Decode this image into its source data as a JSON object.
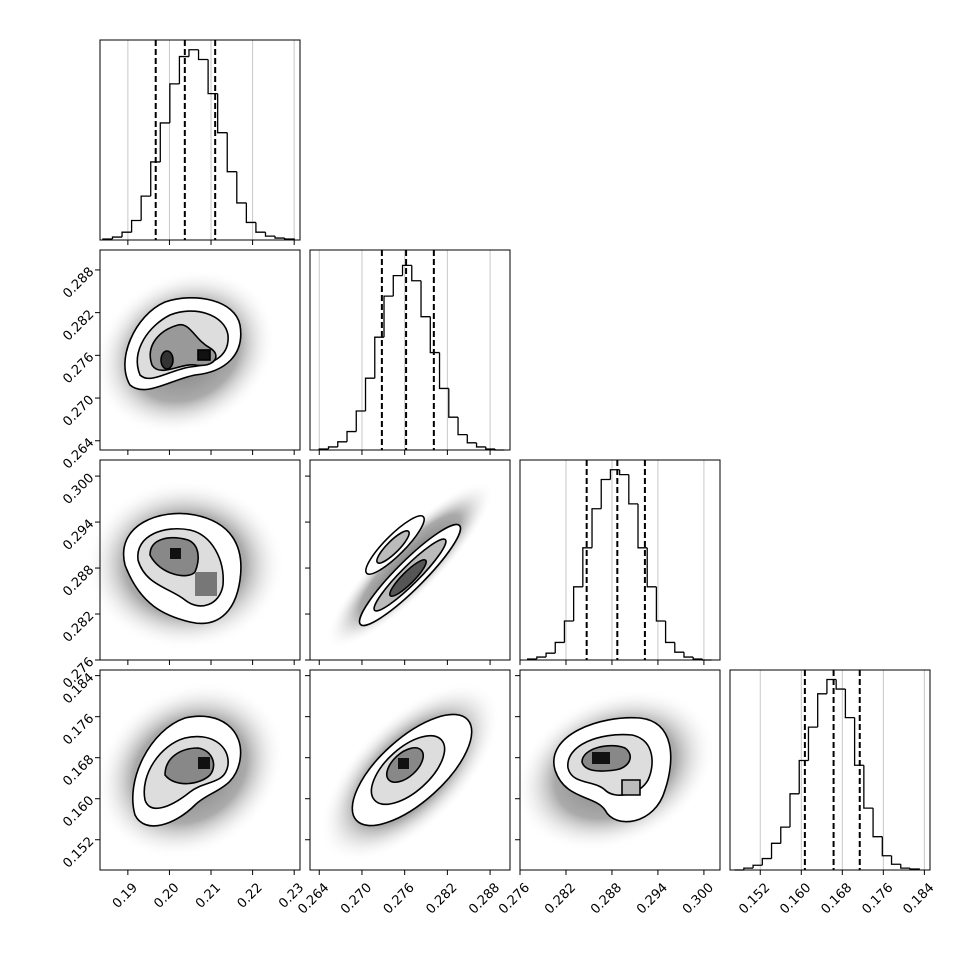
{
  "chart_data": {
    "type": "corner",
    "grid": true,
    "hist_color": "#000000",
    "quantile_color": "#000000",
    "params": [
      {
        "lim": [
          0.1833,
          0.2314
        ],
        "ticks": [
          0.19,
          {
            "value": 0.2,
            "label": "0.20"
          },
          0.21,
          0.22,
          0.23
        ],
        "quantiles": [
          0.1967,
          0.2037,
          0.211
        ],
        "hist_ylim": [
          0,
          205
        ],
        "bins": [
          0.184,
          0.1863,
          0.1886,
          0.1909,
          0.1932,
          0.1955,
          0.1978,
          0.2001,
          0.2024,
          0.2047,
          0.207,
          0.2093,
          0.2116,
          0.2139,
          0.2162,
          0.2185,
          0.2208,
          0.2231,
          0.2254,
          0.2277,
          0.23
        ],
        "counts": [
          1,
          3,
          8,
          20,
          45,
          80,
          120,
          160,
          188,
          195,
          185,
          150,
          110,
          70,
          38,
          18,
          8,
          4,
          2,
          1
        ]
      },
      {
        "lim": [
          0.2627,
          0.2908
        ],
        "ticks": [
          0.264,
          {
            "value": 0.27,
            "label": "0.270"
          },
          0.276,
          0.282,
          0.288
        ],
        "quantiles": [
          0.2728,
          0.2762,
          0.2801
        ],
        "hist_ylim": [
          0,
          195
        ],
        "bins": [
          0.264,
          0.2653,
          0.2666,
          0.2679,
          0.2692,
          0.2705,
          0.2718,
          0.2731,
          0.2744,
          0.2757,
          0.277,
          0.2783,
          0.2796,
          0.2809,
          0.2822,
          0.2835,
          0.2848,
          0.2861,
          0.2874,
          0.2887,
          0.29
        ],
        "counts": [
          1,
          3,
          8,
          18,
          38,
          70,
          110,
          150,
          170,
          180,
          165,
          130,
          95,
          60,
          32,
          15,
          7,
          3,
          1,
          0
        ]
      },
      {
        "lim": [
          0.276,
          0.3021
        ],
        "ticks": [
          0.276,
          0.282,
          0.288,
          0.294,
          {
            "value": 0.3,
            "label": "0.300"
          }
        ],
        "quantiles": [
          0.2847,
          0.2887,
          0.2923
        ],
        "hist_ylim": [
          0,
          205
        ],
        "bins": [
          0.277,
          0.2782,
          0.2794,
          0.2806,
          0.2818,
          0.283,
          0.2842,
          0.2854,
          0.2866,
          0.2878,
          0.289,
          0.2902,
          0.2914,
          0.2926,
          0.2938,
          0.295,
          0.2962,
          0.2974,
          0.2986,
          0.2998,
          0.301
        ],
        "counts": [
          1,
          3,
          7,
          18,
          40,
          75,
          115,
          155,
          185,
          195,
          190,
          160,
          115,
          75,
          40,
          18,
          8,
          3,
          1,
          0
        ]
      },
      {
        "lim": [
          0.1461,
          0.1851
        ],
        "ticks": [
          0.152,
          {
            "value": 0.16,
            "label": "0.160"
          },
          0.168,
          0.176,
          0.184
        ],
        "quantiles": [
          0.1607,
          0.1663,
          0.1714
        ],
        "hist_ylim": [
          0,
          210
        ],
        "bins": [
          0.147,
          0.1488,
          0.1506,
          0.1524,
          0.1542,
          0.156,
          0.1578,
          0.1596,
          0.1614,
          0.1632,
          0.165,
          0.1668,
          0.1686,
          0.1704,
          0.1722,
          0.174,
          0.1758,
          0.1776,
          0.1794,
          0.1812,
          0.183
        ],
        "counts": [
          0,
          2,
          5,
          12,
          28,
          45,
          80,
          115,
          150,
          185,
          200,
          190,
          160,
          110,
          65,
          35,
          15,
          6,
          2,
          1
        ]
      }
    ]
  }
}
